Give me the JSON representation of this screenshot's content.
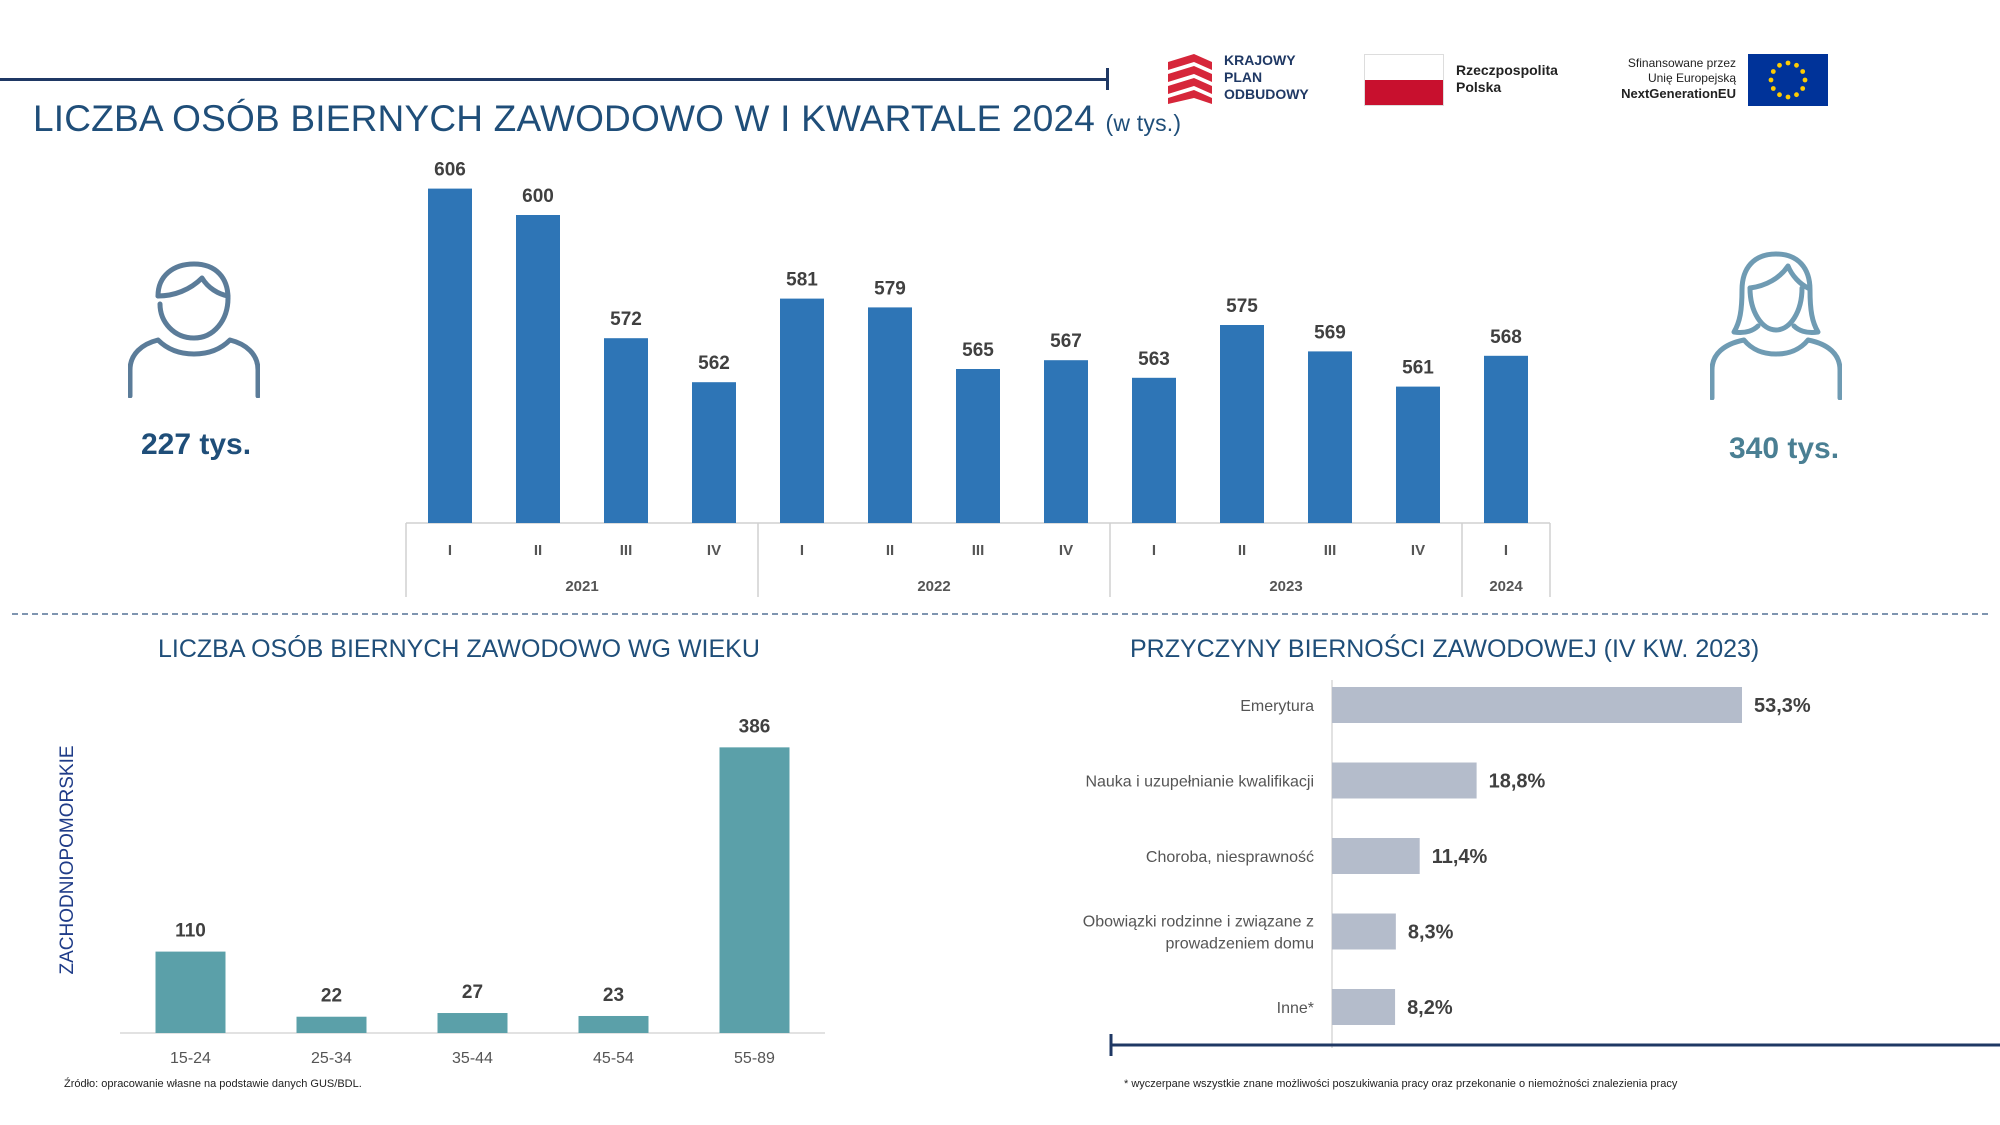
{
  "header": {
    "title": "LICZBA OSÓB BIERNYCH ZAWODOWO W I KWARTALE 2024",
    "title_unit": "(w tys.)"
  },
  "logos": {
    "kpo": [
      "KRAJOWY",
      "PLAN",
      "ODBUDOWY"
    ],
    "rp": [
      "Rzeczpospolita",
      "Polska"
    ],
    "eu": [
      "Sfinansowane przez",
      "Unię Europejską",
      "NextGenerationEU"
    ]
  },
  "men": {
    "value": "227 tys.",
    "color": "#1f4e79"
  },
  "women": {
    "value": "340 tys.",
    "color": "#4a7f93"
  },
  "colors": {
    "bar_main": "#2e75b6",
    "bar_age": "#5ba0a9",
    "bar_reason": "#b4bccb",
    "accent": "#1f3864"
  },
  "chart_data": [
    {
      "type": "bar",
      "title": "LICZBA OSÓB BIERNYCH ZAWODOWO W I KWARTALE 2024 (w tys.)",
      "categories": [
        "I",
        "II",
        "III",
        "IV",
        "I",
        "II",
        "III",
        "IV",
        "I",
        "II",
        "III",
        "IV",
        "I"
      ],
      "years": [
        {
          "label": "2021",
          "count": 4
        },
        {
          "label": "2022",
          "count": 4
        },
        {
          "label": "2023",
          "count": 4
        },
        {
          "label": "2024",
          "count": 1
        }
      ],
      "values": [
        606,
        600,
        572,
        562,
        581,
        579,
        565,
        567,
        563,
        575,
        569,
        561,
        568
      ],
      "ylim": [
        530,
        610
      ]
    },
    {
      "type": "bar",
      "title": "LICZBA OSÓB BIERNYCH ZAWODOWO WG WIEKU",
      "ylabel": "ZACHODNIOPOMORSKIE",
      "categories": [
        "15-24",
        "25-34",
        "35-44",
        "45-54",
        "55-89"
      ],
      "values": [
        110,
        22,
        27,
        23,
        386
      ],
      "ylim": [
        0,
        400
      ]
    },
    {
      "type": "bar",
      "orientation": "horizontal",
      "title": "PRZYCZYNY BIERNOŚCI ZAWODOWEJ (IV KW. 2023)",
      "categories": [
        "Emerytura",
        "Nauka i uzupełnianie kwalifikacji",
        "Choroba, niesprawność",
        "Obowiązki rodzinne i związane z prowadzeniem domu",
        "Inne*"
      ],
      "values": [
        53.3,
        18.8,
        11.4,
        8.3,
        8.2
      ],
      "value_labels": [
        "53,3%",
        "18,8%",
        "11,4%",
        "8,3%",
        "8,2%"
      ],
      "xlim": [
        0,
        60
      ]
    }
  ],
  "footer": {
    "source": "Źródło: opracowanie własne na podstawie danych GUS/BDL.",
    "note": "* wyczerpane wszystkie znane możliwości poszukiwania pracy oraz przekonanie o niemożności znalezienia pracy"
  }
}
